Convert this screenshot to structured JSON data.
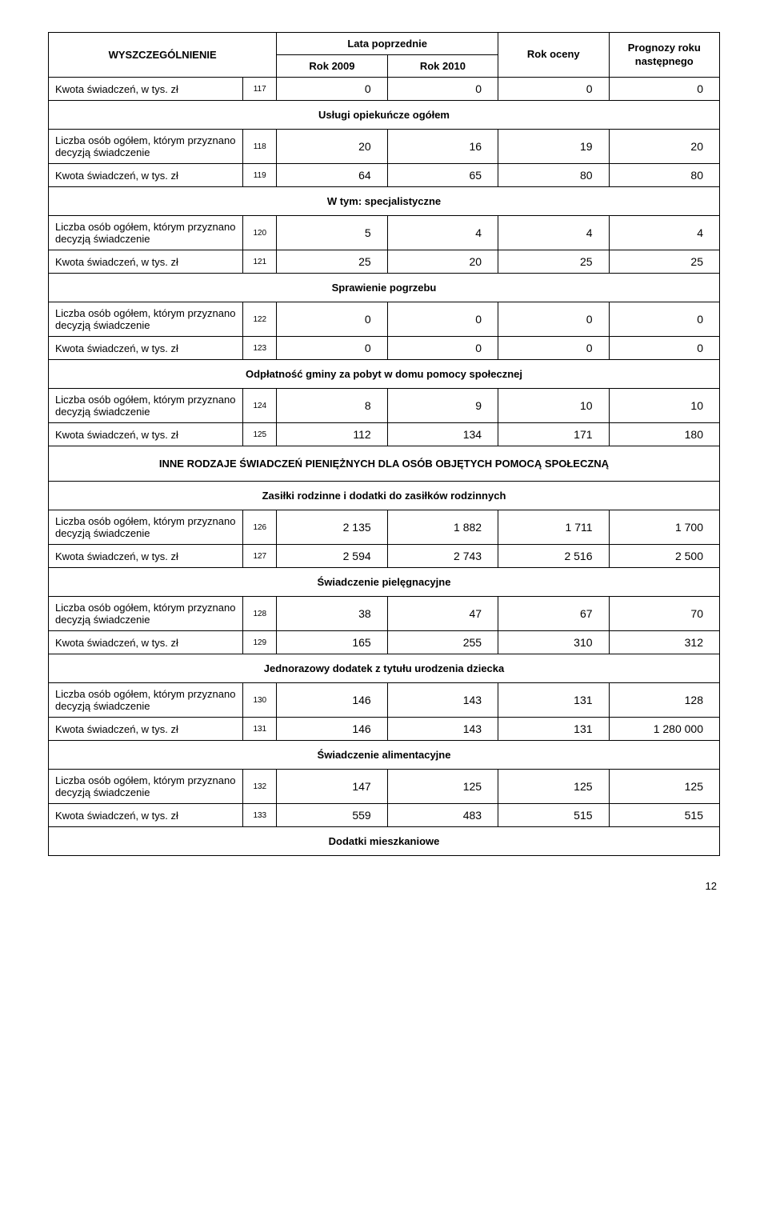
{
  "header": {
    "label": "WYSZCZEGÓLNIENIE",
    "prev_years": "Lata poprzednie",
    "year1": "Rok 2009",
    "year2": "Rok 2010",
    "eval": "Rok\noceny",
    "forecast": "Prognozy\nroku następnego"
  },
  "labels": {
    "kwota": "Kwota świadczeń, w tys. zł",
    "liczba": "Liczba osób ogółem, którym przyznano decyzją świadczenie"
  },
  "sections": [
    {
      "id": "s0",
      "rows": [
        {
          "label": "kwota",
          "idx": "117",
          "v": [
            "0",
            "0",
            "0",
            "0"
          ]
        }
      ]
    },
    {
      "id": "s1",
      "title": "Usługi opiekuńcze ogółem",
      "rows": [
        {
          "label": "liczba",
          "idx": "118",
          "v": [
            "20",
            "16",
            "19",
            "20"
          ]
        },
        {
          "label": "kwota",
          "idx": "119",
          "v": [
            "64",
            "65",
            "80",
            "80"
          ]
        }
      ]
    },
    {
      "id": "s2",
      "title": "W tym: specjalistyczne",
      "rows": [
        {
          "label": "liczba",
          "idx": "120",
          "v": [
            "5",
            "4",
            "4",
            "4"
          ]
        },
        {
          "label": "kwota",
          "idx": "121",
          "v": [
            "25",
            "20",
            "25",
            "25"
          ]
        }
      ]
    },
    {
      "id": "s3",
      "title": "Sprawienie pogrzebu",
      "rows": [
        {
          "label": "liczba",
          "idx": "122",
          "v": [
            "0",
            "0",
            "0",
            "0"
          ]
        },
        {
          "label": "kwota",
          "idx": "123",
          "v": [
            "0",
            "0",
            "0",
            "0"
          ]
        }
      ]
    },
    {
      "id": "s4",
      "title": "Odpłatność gminy za pobyt w domu pomocy społecznej",
      "rows": [
        {
          "label": "liczba",
          "idx": "124",
          "v": [
            "8",
            "9",
            "10",
            "10"
          ]
        },
        {
          "label": "kwota",
          "idx": "125",
          "v": [
            "112",
            "134",
            "171",
            "180"
          ]
        }
      ]
    },
    {
      "id": "s5",
      "caps": true,
      "title": "INNE RODZAJE ŚWIADCZEŃ PIENIĘŻNYCH DLA OSÓB OBJĘTYCH POMOCĄ SPOŁECZNĄ"
    },
    {
      "id": "s6",
      "title": "Zasiłki rodzinne i dodatki do zasiłków rodzinnych",
      "rows": [
        {
          "label": "liczba",
          "idx": "126",
          "v": [
            "2 135",
            "1 882",
            "1 711",
            "1 700"
          ]
        },
        {
          "label": "kwota",
          "idx": "127",
          "v": [
            "2 594",
            "2 743",
            "2 516",
            "2 500"
          ]
        }
      ]
    },
    {
      "id": "s7",
      "title": "Świadczenie pielęgnacyjne",
      "rows": [
        {
          "label": "liczba",
          "idx": "128",
          "v": [
            "38",
            "47",
            "67",
            "70"
          ]
        },
        {
          "label": "kwota",
          "idx": "129",
          "v": [
            "165",
            "255",
            "310",
            "312"
          ]
        }
      ]
    },
    {
      "id": "s8",
      "title": "Jednorazowy dodatek z tytułu urodzenia dziecka",
      "rows": [
        {
          "label": "liczba",
          "idx": "130",
          "v": [
            "146",
            "143",
            "131",
            "128"
          ]
        },
        {
          "label": "kwota",
          "idx": "131",
          "v": [
            "146",
            "143",
            "131",
            "1 280 000"
          ]
        }
      ]
    },
    {
      "id": "s9",
      "title": "Świadczenie alimentacyjne",
      "rows": [
        {
          "label": "liczba",
          "idx": "132",
          "v": [
            "147",
            "125",
            "125",
            "125"
          ]
        },
        {
          "label": "kwota",
          "idx": "133",
          "v": [
            "559",
            "483",
            "515",
            "515"
          ]
        }
      ]
    },
    {
      "id": "s10",
      "title": "Dodatki mieszkaniowe"
    }
  ],
  "page_number": "12"
}
